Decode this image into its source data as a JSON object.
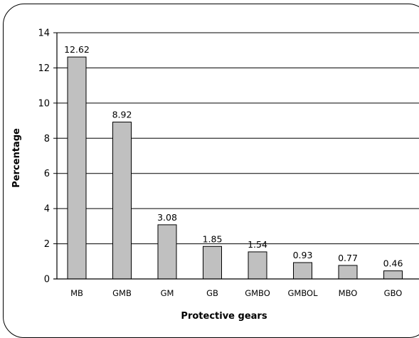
{
  "chart_data": {
    "type": "bar",
    "categories": [
      "MB",
      "GMB",
      "GM",
      "GB",
      "GMBO",
      "GMBOL",
      "MBO",
      "GBO"
    ],
    "values": [
      12.62,
      8.92,
      3.08,
      1.85,
      1.54,
      0.93,
      0.77,
      0.46
    ],
    "data_labels": [
      "12.62",
      "8.92",
      "3.08",
      "1.85",
      "1.54",
      "0.93",
      "0.77",
      "0.46"
    ],
    "xlabel": "Protective gears",
    "ylabel": "Percentage",
    "ylim": [
      0,
      14
    ],
    "yticks": [
      "0",
      "2",
      "4",
      "6",
      "8",
      "10",
      "12",
      "14"
    ],
    "grid": true,
    "colors": {
      "bar_fill": "#c0c0c0",
      "bar_stroke": "#000000",
      "grid": "#000000"
    }
  }
}
